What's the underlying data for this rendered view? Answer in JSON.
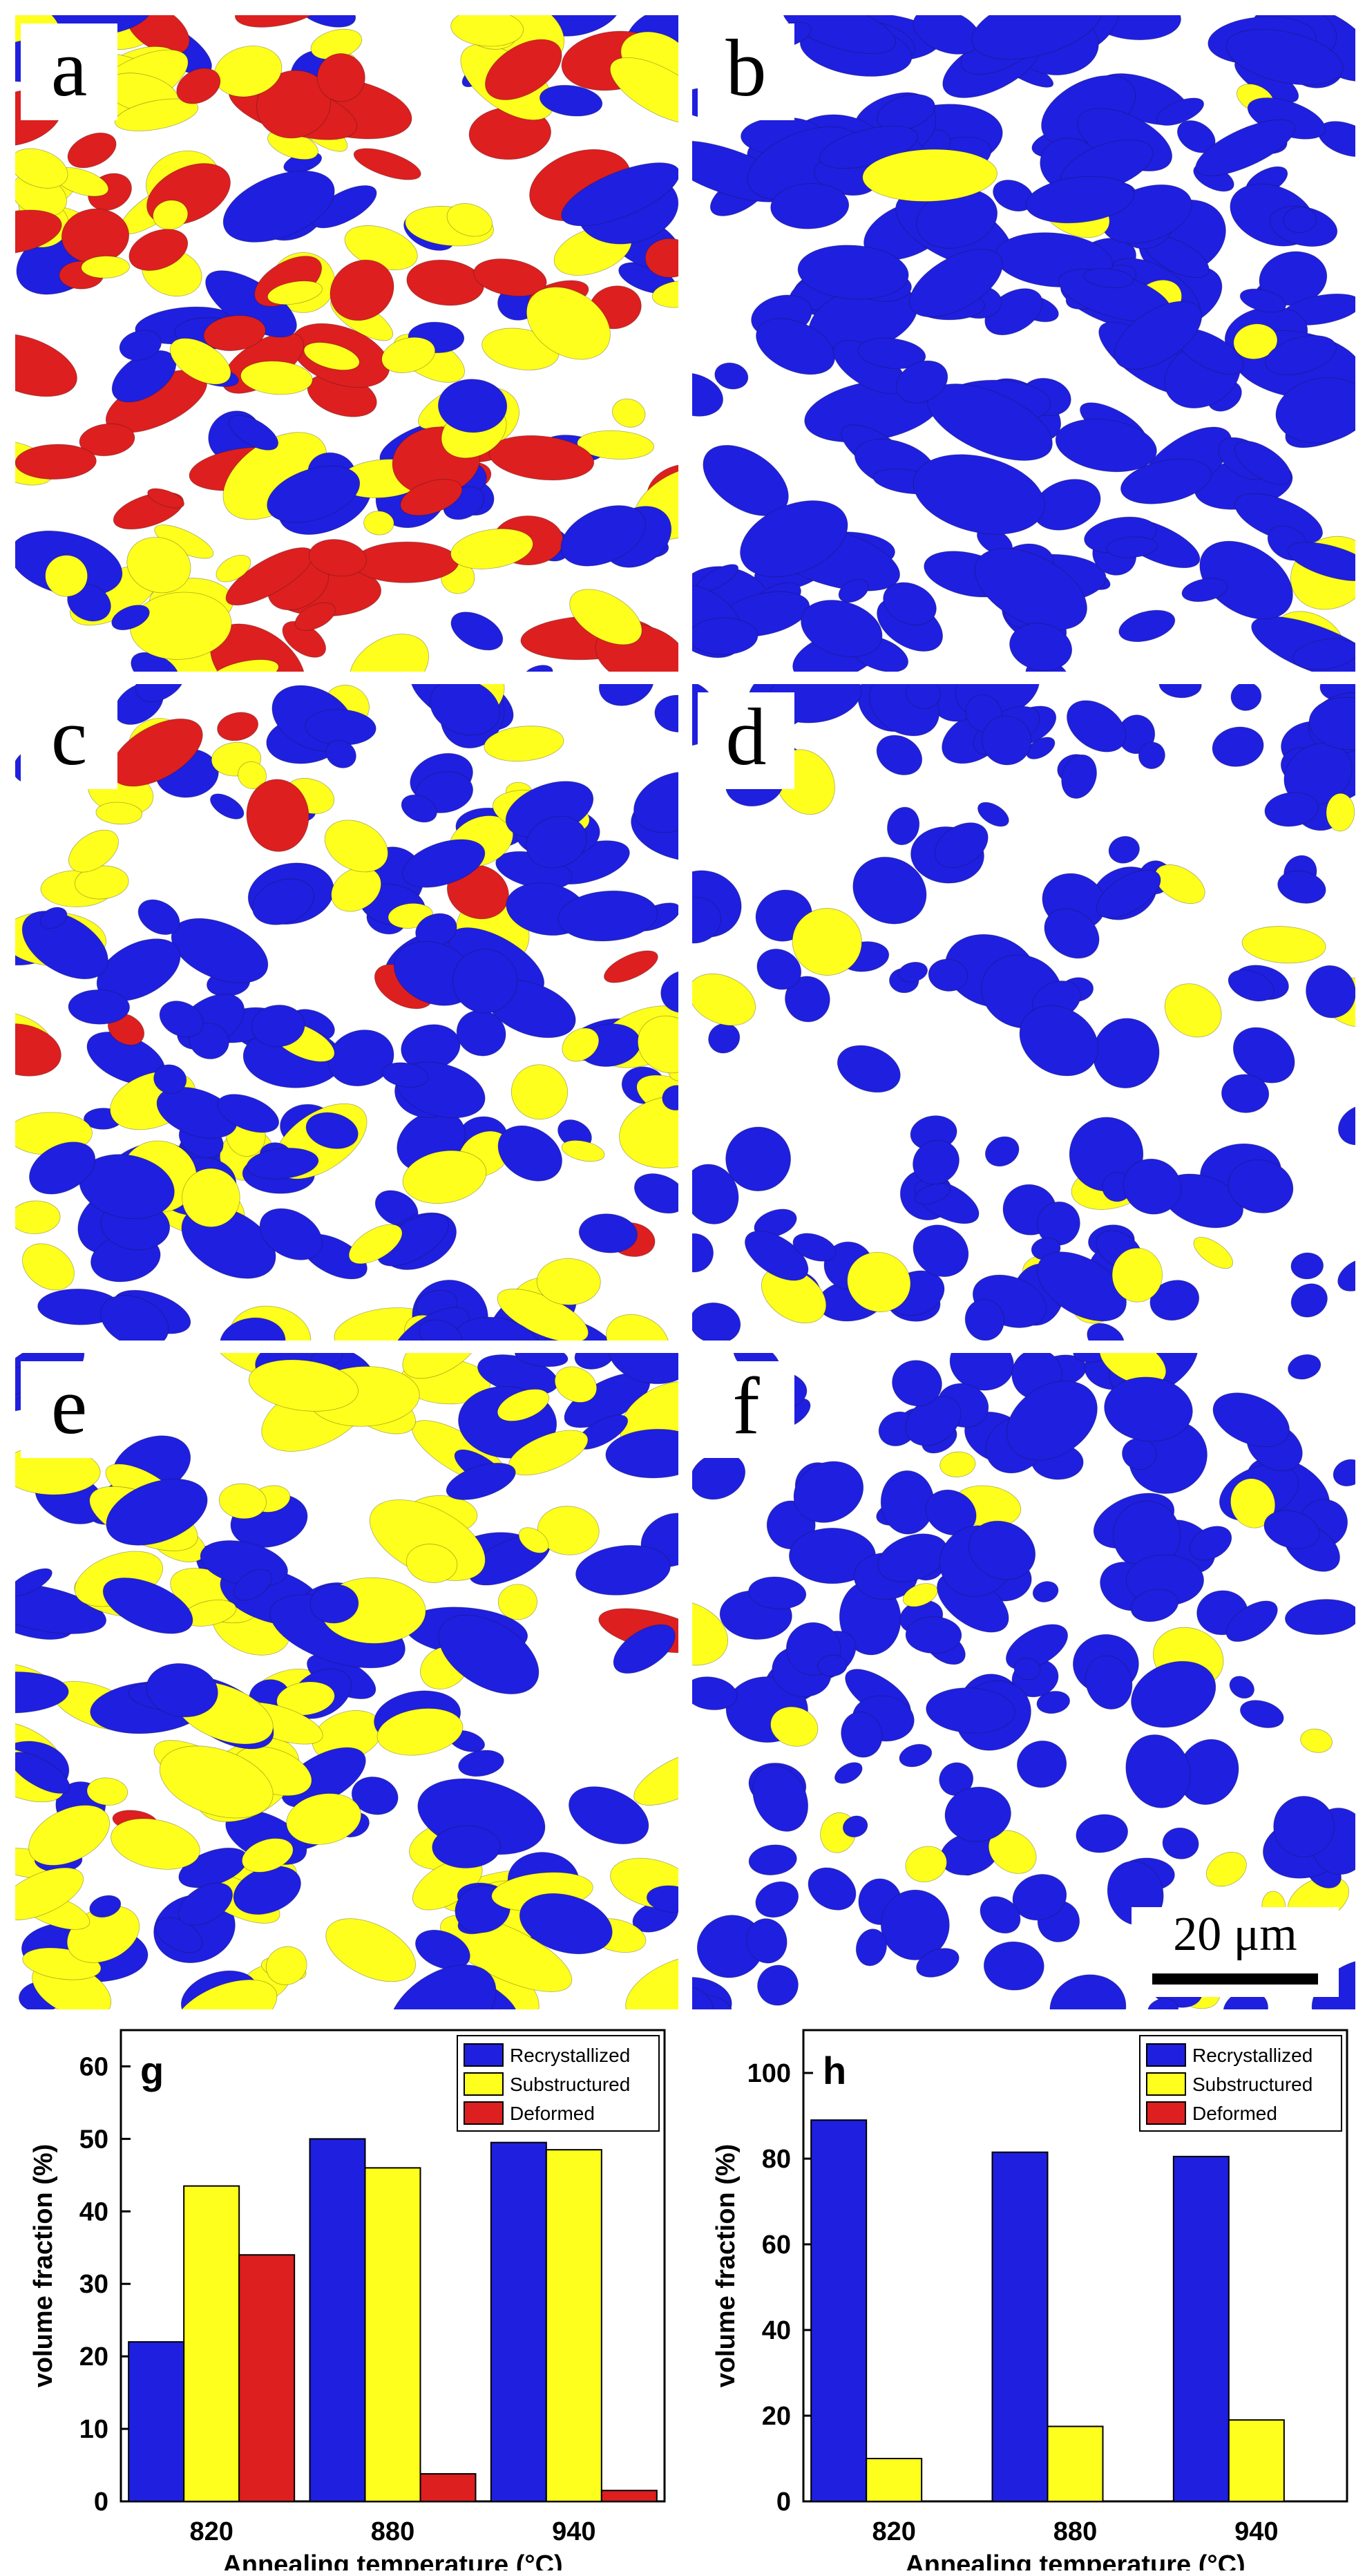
{
  "maps": [
    {
      "id": "a",
      "label": "a",
      "palette": {
        "blue": "#1f1fe0",
        "yellow": "#ffff1e",
        "red": "#dd1f1f",
        "white": "#ffffff"
      }
    },
    {
      "id": "b",
      "label": "b",
      "palette": {
        "blue": "#1f1fe0",
        "yellow": "#ffff1e",
        "red": "#dd1f1f",
        "white": "#ffffff"
      }
    },
    {
      "id": "c",
      "label": "c",
      "palette": {
        "blue": "#1f1fe0",
        "yellow": "#ffff1e",
        "red": "#dd1f1f",
        "white": "#ffffff"
      }
    },
    {
      "id": "d",
      "label": "d",
      "palette": {
        "blue": "#1f1fe0",
        "yellow": "#ffff1e",
        "red": "#dd1f1f",
        "white": "#ffffff"
      }
    },
    {
      "id": "e",
      "label": "e",
      "palette": {
        "blue": "#1f1fe0",
        "yellow": "#ffff1e",
        "red": "#dd1f1f",
        "white": "#ffffff"
      }
    },
    {
      "id": "f",
      "label": "f",
      "palette": {
        "blue": "#1f1fe0",
        "yellow": "#ffff1e",
        "red": "#dd1f1f",
        "white": "#ffffff"
      }
    }
  ],
  "scale_bar": {
    "label": "20 μm"
  },
  "colors": {
    "recrystallized": "#1f1fe0",
    "substructured": "#ffff1e",
    "deformed": "#dd1f1f"
  },
  "chart_data": [
    {
      "type": "bar",
      "panel_label": "g",
      "categories": [
        "820",
        "880",
        "940"
      ],
      "series": [
        {
          "name": "Recrystallized",
          "values": [
            22,
            50,
            49.5
          ]
        },
        {
          "name": "Substructured",
          "values": [
            43.5,
            46,
            48.5
          ]
        },
        {
          "name": "Deformed",
          "values": [
            34,
            3.8,
            1.5
          ]
        }
      ],
      "xlabel": "Annealing temperature (°C)",
      "ylabel": "volume fraction (%)",
      "ylim": [
        0,
        65
      ],
      "yticks": [
        0,
        10,
        20,
        30,
        40,
        50,
        60
      ],
      "legend": "top-right"
    },
    {
      "type": "bar",
      "panel_label": "h",
      "categories": [
        "820",
        "880",
        "940"
      ],
      "series": [
        {
          "name": "Recrystallized",
          "values": [
            89,
            81.5,
            80.5
          ]
        },
        {
          "name": "Substructured",
          "values": [
            10,
            17.5,
            19
          ]
        },
        {
          "name": "Deformed",
          "values": [
            0,
            0,
            0
          ]
        }
      ],
      "xlabel": "Annealing temperature (°C)",
      "ylabel": "volume fraction (%)",
      "ylim": [
        0,
        110
      ],
      "yticks": [
        0,
        20,
        40,
        60,
        80,
        100
      ],
      "legend": "top-right"
    }
  ]
}
